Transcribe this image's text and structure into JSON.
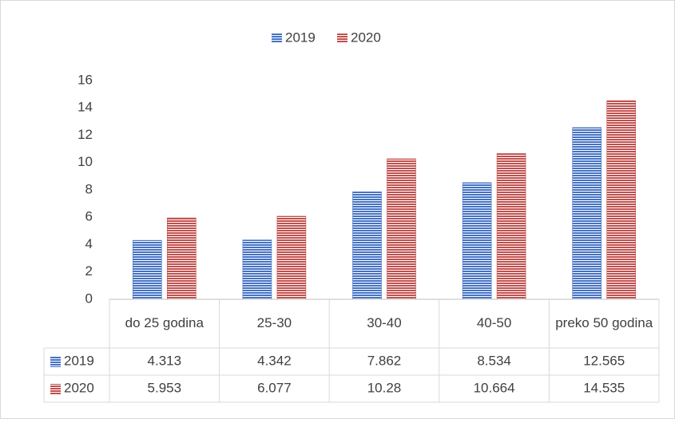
{
  "chart_data": {
    "type": "bar",
    "categories": [
      "do 25 godina",
      "25-30",
      "30-40",
      "40-50",
      "preko 50 godina"
    ],
    "series": [
      {
        "name": "2019",
        "color": "#4472c4",
        "values": [
          4.313,
          4.342,
          7.862,
          8.534,
          12.565
        ]
      },
      {
        "name": "2020",
        "color": "#c0504d",
        "values": [
          5.953,
          6.077,
          10.28,
          10.664,
          14.535
        ]
      }
    ],
    "ylim": [
      0,
      16
    ],
    "yticks": [
      0,
      2,
      4,
      6,
      8,
      10,
      12,
      14,
      16
    ],
    "legend": "top",
    "grid": false,
    "data_table": true
  }
}
